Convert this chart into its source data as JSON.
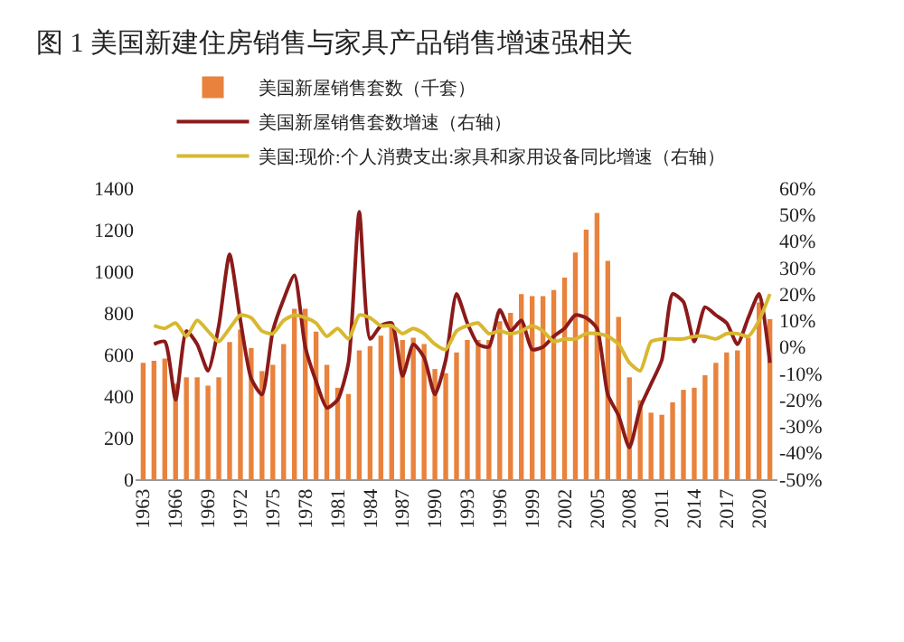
{
  "chart_data": {
    "type": "bar",
    "title": "图 1 美国新建住房销售与家具产品销售增速强相关",
    "x": [
      1963,
      1964,
      1965,
      1966,
      1967,
      1968,
      1969,
      1970,
      1971,
      1972,
      1973,
      1974,
      1975,
      1976,
      1977,
      1978,
      1979,
      1980,
      1981,
      1982,
      1983,
      1984,
      1985,
      1986,
      1987,
      1988,
      1989,
      1990,
      1991,
      1992,
      1993,
      1994,
      1995,
      1996,
      1997,
      1998,
      1999,
      2000,
      2001,
      2002,
      2003,
      2004,
      2005,
      2006,
      2007,
      2008,
      2009,
      2010,
      2011,
      2012,
      2013,
      2014,
      2015,
      2016,
      2017,
      2018,
      2019,
      2020,
      2021
    ],
    "series": [
      {
        "name": "美国新屋销售套数（千套）",
        "color": "#e8823c",
        "values": [
          560,
          570,
          580,
          460,
          490,
          490,
          450,
          490,
          660,
          720,
          630,
          520,
          550,
          650,
          820,
          820,
          710,
          550,
          440,
          410,
          620,
          640,
          690,
          750,
          670,
          680,
          650,
          530,
          510,
          610,
          670,
          670,
          670,
          760,
          800,
          890,
          880,
          880,
          910,
          970,
          1090,
          1200,
          1280,
          1050,
          780,
          490,
          380,
          320,
          310,
          370,
          430,
          440,
          500,
          560,
          610,
          620,
          680,
          850,
          770
        ]
      },
      {
        "name": "美国新屋销售套数增速（右轴）",
        "type": "line",
        "axis": "y2",
        "color": "#8b1a1a",
        "values": [
          null,
          1,
          2,
          -20,
          6,
          1,
          -9,
          8,
          35,
          10,
          -12,
          -18,
          6,
          18,
          27,
          0,
          -13,
          -23,
          -20,
          -6,
          51,
          3,
          8,
          9,
          -11,
          1,
          -4,
          -18,
          -5,
          20,
          9,
          1,
          0,
          14,
          6,
          10,
          -1,
          0,
          4,
          7,
          12,
          11,
          7,
          -18,
          -26,
          -38,
          -23,
          -14,
          -5,
          20,
          17,
          2,
          15,
          12,
          9,
          1,
          11,
          20,
          -6
        ]
      },
      {
        "name": "美国:现价:个人消费支出:家具和家用设备同比增速（右轴）",
        "type": "line",
        "axis": "y2",
        "color": "#d8b830",
        "values": [
          null,
          8,
          7,
          9,
          4,
          10,
          6,
          2,
          7,
          12,
          11,
          6,
          5,
          10,
          12,
          11,
          9,
          4,
          7,
          3,
          12,
          11,
          8,
          8,
          5,
          7,
          5,
          1,
          -1,
          6,
          8,
          9,
          5,
          6,
          5,
          6,
          8,
          6,
          2,
          3,
          3,
          5,
          5,
          4,
          1,
          -6,
          -9,
          2,
          3,
          3,
          3,
          4,
          4,
          3,
          5,
          5,
          4,
          10,
          20
        ]
      }
    ],
    "xlim": [
      1962.3,
      2021.7
    ],
    "xticks": [
      1963,
      1966,
      1969,
      1972,
      1975,
      1978,
      1981,
      1984,
      1987,
      1990,
      1993,
      1996,
      1999,
      2002,
      2005,
      2008,
      2011,
      2014,
      2017,
      2020
    ],
    "ylim": [
      0,
      1400
    ],
    "yticks": [
      0,
      200,
      400,
      600,
      800,
      1000,
      1200,
      1400
    ],
    "y2lim": [
      -50,
      60
    ],
    "y2ticks": [
      {
        "value": 60,
        "label": "60%"
      },
      {
        "value": 50,
        "label": "50%"
      },
      {
        "value": 40,
        "label": "40%"
      },
      {
        "value": 30,
        "label": "30%"
      },
      {
        "value": 20,
        "label": "20%"
      },
      {
        "value": 10,
        "label": "10%"
      },
      {
        "value": 0,
        "label": "0%"
      },
      {
        "value": -10,
        "label": "-10%"
      },
      {
        "value": -20,
        "label": "-20%"
      },
      {
        "value": -30,
        "label": "-30%"
      },
      {
        "value": -40,
        "label": "-40%"
      },
      {
        "value": -50,
        "label": "-50%"
      }
    ],
    "legend": "top",
    "grid": false
  }
}
